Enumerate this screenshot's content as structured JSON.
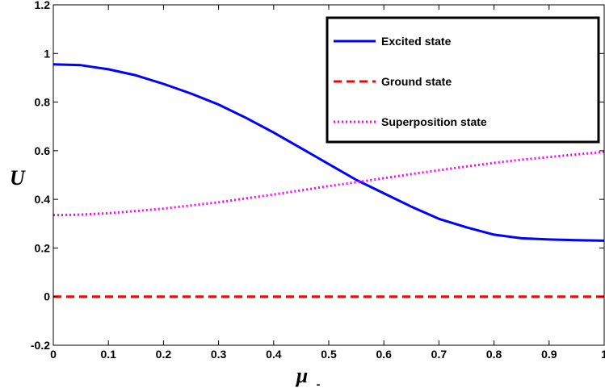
{
  "chart_data": {
    "type": "line",
    "xlabel": "μ",
    "xlabel_subscript": "-",
    "ylabel": "U",
    "xlim": [
      0,
      1
    ],
    "ylim": [
      -0.2,
      1.2
    ],
    "xticks": [
      0,
      0.1,
      0.2,
      0.3,
      0.4,
      0.5,
      0.6,
      0.7,
      0.8,
      0.9,
      1
    ],
    "xtick_labels": [
      "0",
      "0.1",
      "0.2",
      "0.3",
      "0.4",
      "0.5",
      "0.6",
      "0.7",
      "0.8",
      "0.9",
      "1"
    ],
    "yticks": [
      -0.2,
      0,
      0.2,
      0.4,
      0.6,
      0.8,
      1,
      1.2
    ],
    "ytick_labels": [
      "-0.2",
      "0",
      "0.2",
      "0.4",
      "0.6",
      "0.8",
      "1",
      "1.2"
    ],
    "grid": false,
    "legend_position": "top-right",
    "series": [
      {
        "name": "Excited state",
        "color": "#0000ff",
        "style": "solid",
        "x": [
          0,
          0.05,
          0.1,
          0.15,
          0.2,
          0.25,
          0.3,
          0.35,
          0.4,
          0.45,
          0.5,
          0.55,
          0.6,
          0.65,
          0.7,
          0.75,
          0.8,
          0.85,
          0.9,
          0.95,
          1.0
        ],
        "y": [
          0.955,
          0.952,
          0.935,
          0.91,
          0.875,
          0.835,
          0.79,
          0.735,
          0.675,
          0.61,
          0.545,
          0.48,
          0.425,
          0.37,
          0.32,
          0.285,
          0.255,
          0.24,
          0.235,
          0.232,
          0.23
        ]
      },
      {
        "name": "Ground state",
        "color": "#ff0000",
        "style": "dashed",
        "x": [
          0,
          1
        ],
        "y": [
          0,
          0
        ]
      },
      {
        "name": "Superposition state",
        "color": "#ff00ff",
        "style": "dotted",
        "x": [
          0,
          0.05,
          0.1,
          0.15,
          0.2,
          0.25,
          0.3,
          0.35,
          0.4,
          0.45,
          0.5,
          0.55,
          0.6,
          0.65,
          0.7,
          0.75,
          0.8,
          0.85,
          0.9,
          0.95,
          1.0
        ],
        "y": [
          0.335,
          0.337,
          0.343,
          0.352,
          0.362,
          0.375,
          0.388,
          0.404,
          0.42,
          0.437,
          0.455,
          0.47,
          0.487,
          0.504,
          0.52,
          0.535,
          0.55,
          0.563,
          0.574,
          0.585,
          0.595
        ]
      }
    ]
  }
}
